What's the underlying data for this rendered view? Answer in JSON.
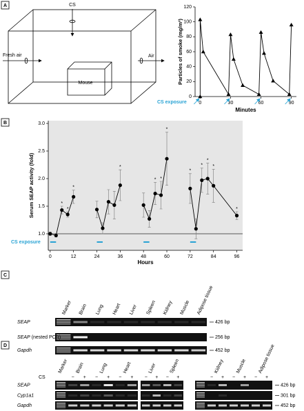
{
  "panels": [
    "A",
    "B",
    "C",
    "D"
  ],
  "diagram": {
    "cs": "CS",
    "fresh_air": "Fresh air",
    "air": "Air",
    "mouse": "Mouse"
  },
  "chart_data": [
    {
      "type": "line",
      "y_label": "Particles of smoke (mg/m³)",
      "x_label": "Minutes",
      "x": [
        0,
        0,
        3,
        28,
        30,
        33,
        42,
        58,
        60,
        63,
        72,
        88,
        90
      ],
      "series": [
        {
          "color": "#000000",
          "marker": "triangle",
          "values": [
            0,
            103,
            60,
            3,
            83,
            50,
            15,
            3,
            86,
            58,
            21,
            3,
            96
          ]
        }
      ],
      "xlim": [
        -5,
        95
      ],
      "ylim": [
        0,
        120
      ],
      "xticks": [
        0,
        30,
        60,
        90
      ],
      "yticks": [
        0,
        20,
        40,
        60,
        80,
        100,
        120
      ],
      "annotation": {
        "text": "CS exposure",
        "color": "#29a3d4",
        "x": [
          0,
          30,
          60,
          90
        ]
      }
    },
    {
      "type": "line",
      "y_label": "Serum SEAP activity (fold)",
      "x_label": "Hours",
      "background": "#e6e6e6",
      "x": [
        0,
        3,
        6,
        9,
        12,
        null,
        24,
        27,
        30,
        33,
        36,
        null,
        48,
        51,
        54,
        57,
        60,
        null,
        72,
        75,
        78,
        81,
        84,
        96
      ],
      "series": [
        {
          "color": "#000000",
          "marker": "circle",
          "values": [
            1.0,
            0.97,
            1.43,
            1.35,
            1.67,
            null,
            1.44,
            1.1,
            1.58,
            1.52,
            1.88,
            null,
            1.52,
            1.27,
            1.73,
            1.7,
            2.36,
            null,
            1.82,
            1.09,
            1.97,
            2.0,
            1.87,
            1.33
          ],
          "errors": [
            0.03,
            0.03,
            0.07,
            0.05,
            0.12,
            null,
            0.15,
            0.1,
            0.22,
            0.25,
            0.28,
            null,
            0.22,
            0.15,
            0.2,
            0.25,
            0.48,
            null,
            0.27,
            0.18,
            0.22,
            0.28,
            0.3,
            0.07
          ],
          "significance": [
            null,
            null,
            "*",
            "*",
            "*",
            null,
            null,
            null,
            null,
            null,
            "*",
            null,
            null,
            null,
            "*",
            "*",
            "*",
            null,
            "*",
            null,
            "*",
            "*",
            "*",
            "*"
          ]
        }
      ],
      "xlim": [
        -1,
        99
      ],
      "ylim": [
        0.7,
        3.05
      ],
      "xticks": [
        0,
        12,
        24,
        36,
        48,
        60,
        72,
        84,
        96
      ],
      "yticks": [
        {
          "value": 1.0,
          "label": "1.0"
        },
        1.5,
        {
          "value": 2.0,
          "label": "2.0"
        },
        2.5,
        {
          "value": 3.0,
          "label": "3.0"
        }
      ],
      "reference_line": 1.0,
      "cs_exposure": {
        "label": "CS exposure",
        "color": "#29a3d4",
        "intervals": [
          [
            0,
            3
          ],
          [
            24,
            27
          ],
          [
            48,
            51
          ],
          [
            72,
            75
          ]
        ]
      }
    }
  ],
  "gel_c": {
    "lanes": [
      "Marker",
      "Brain",
      "Lung",
      "Heart",
      "Liver",
      "Spleen",
      "Kidney",
      "Muscle",
      "Adipose tissue"
    ],
    "rows": [
      {
        "label": "SEAP",
        "size": "426 bp"
      },
      {
        "label": "SEAP",
        "note": "(nested PCR)",
        "size": "256 bp"
      },
      {
        "label": "Gapdh",
        "size": "452 bp"
      }
    ]
  },
  "gel_d": {
    "lanes": [
      "Marker",
      "Brain",
      "Lung",
      "Heart",
      "Liver",
      "Spleen",
      "Kidney",
      "Muscle",
      "Adipose tissue"
    ],
    "cs_label": "CS",
    "signs": [
      "−",
      "+",
      "−",
      "+",
      "−",
      "+",
      "−",
      "+",
      "−",
      "+",
      "−",
      "+",
      "−",
      "+",
      "−",
      "+"
    ],
    "rows": [
      {
        "label": "SEAP",
        "size": "426 bp"
      },
      {
        "label": "Cyp1a1",
        "size": "301 bp"
      },
      {
        "label": "Gapdh",
        "size": "452 bp"
      }
    ]
  }
}
